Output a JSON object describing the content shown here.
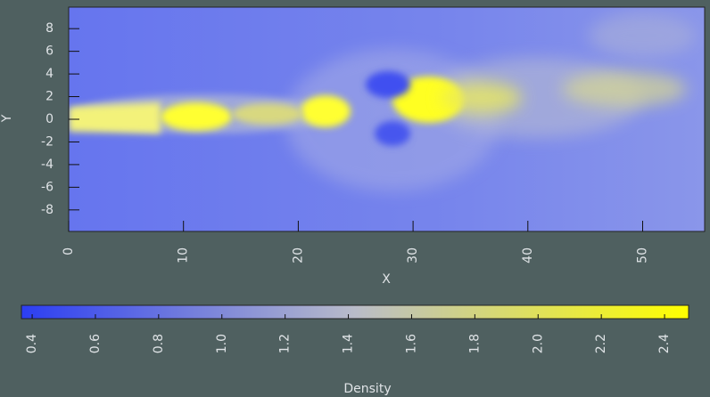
{
  "chart_data": {
    "type": "heatmap",
    "x_label": "X",
    "y_label": "Y",
    "xlim": [
      0,
      55.4
    ],
    "xticks": [
      0,
      10,
      20,
      30,
      40,
      50
    ],
    "ylim": [
      -9.9,
      9.9
    ],
    "yticks": [
      -8,
      -6,
      -4,
      -2,
      0,
      2,
      4,
      6,
      8
    ],
    "colorbar": {
      "label": "Density",
      "clim": [
        0.366,
        2.476
      ],
      "colormap": [
        "#2c3ef2",
        "#b9bcc9",
        "#ffff00"
      ],
      "ticks": [
        0.4,
        0.6,
        0.8,
        {
          "value": 1,
          "label": "1.0"
        },
        1.2,
        1.4,
        1.6,
        1.8,
        {
          "value": 2,
          "label": "2.0"
        },
        2.2,
        2.4
      ]
    }
  }
}
